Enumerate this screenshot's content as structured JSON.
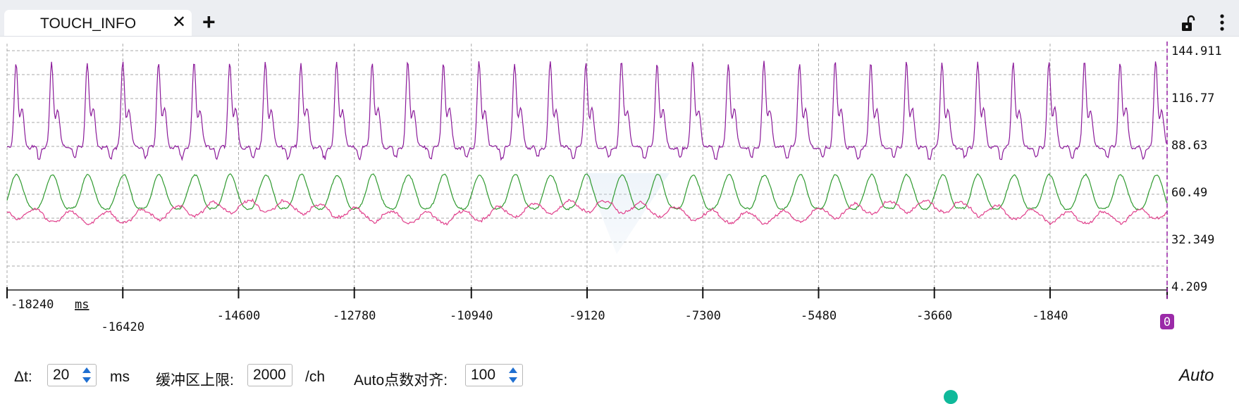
{
  "tabs": [
    {
      "label": "TOUCH_INFO",
      "close_icon": "close-icon"
    }
  ],
  "tab_add_icon": "plus-icon",
  "header_icons": [
    "unlock-icon",
    "more-vertical-icon"
  ],
  "chart_data": {
    "type": "line",
    "x_unit": "ms",
    "x_tick_labels": [
      "-18240",
      "-16420",
      "-14600",
      "-12780",
      "-10940",
      "-9120",
      "-7300",
      "-5480",
      "-3660",
      "-1840",
      "0"
    ],
    "y_tick_labels": [
      "144.911",
      "116.77",
      "88.63",
      "60.49",
      "32.349",
      "4.209"
    ],
    "ylim": [
      4.209,
      144.911
    ],
    "xlim": [
      -18240,
      0
    ],
    "grid": true,
    "cursor_x": 0,
    "series": [
      {
        "color": "#8b1a9a",
        "min": 82,
        "max": 132,
        "period_ms": 560
      },
      {
        "color": "#2f9a2f",
        "min": 52,
        "max": 72,
        "period_ms": 560
      },
      {
        "color": "#e0408c",
        "min": 43,
        "max": 57,
        "period_ms": 560
      }
    ]
  },
  "controls": {
    "dt_label": "Δt:",
    "dt_value": "20",
    "dt_unit": "ms",
    "buffer_label": "缓冲区上限:",
    "buffer_value": "2000",
    "buffer_unit": "/ch",
    "align_label": "Auto点数对齐:",
    "align_value": "100",
    "mode": "Auto"
  },
  "colors": {
    "tabbar_bg": "#eceef2",
    "purple": "#8b1a9a",
    "green": "#2f9a2f",
    "pink": "#e0408c",
    "cursor": "#9b2aa8",
    "spin_arrow": "#1f6fd1"
  }
}
